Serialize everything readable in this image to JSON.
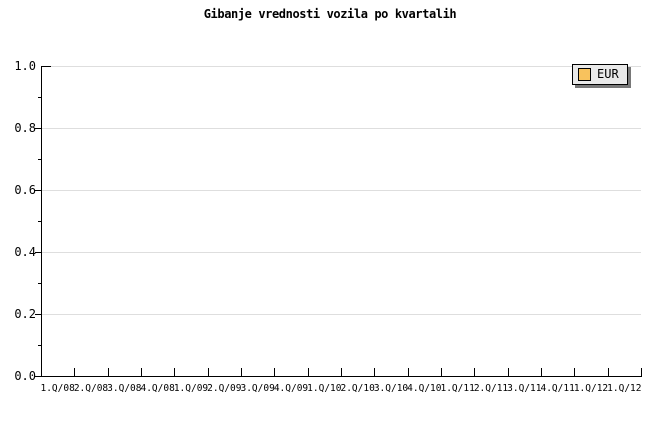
{
  "colors": {
    "background": "#FFFFFF",
    "axis": "#000000",
    "gridline": "#DEDEDE",
    "legend_bg": "#E9E9E9",
    "legend_border": "#000000",
    "legend_shadow": "#787878",
    "swatch": "#F8C25D",
    "text": "#000000"
  },
  "chart_data": {
    "type": "line",
    "title": "Gibanje vrednosti vozila po kvartalih",
    "xlabel": "",
    "ylabel": "",
    "categories": [
      "1.Q/08",
      "2.Q/08",
      "3.Q/08",
      "4.Q/08",
      "1.Q/09",
      "2.Q/09",
      "3.Q/09",
      "4.Q/09",
      "1.Q/10",
      "2.Q/10",
      "3.Q/10",
      "4.Q/10",
      "1.Q/11",
      "2.Q/11",
      "3.Q/11",
      "4.Q/11",
      "1.Q/12",
      "1.Q/12"
    ],
    "y_tick_labels": [
      "1.0",
      "0.8",
      "0.6",
      "0.4",
      "0.2",
      "0.0"
    ],
    "y_ticks": [
      1.0,
      0.8,
      0.6,
      0.4,
      0.2,
      0.0
    ],
    "y_minor_ticks": [
      0.9,
      0.7,
      0.5,
      0.3,
      0.1
    ],
    "ylim": [
      0.0,
      1.0
    ],
    "grid": "horizontal-major-only",
    "series": [
      {
        "name": "EUR",
        "values": []
      }
    ],
    "legend": {
      "position": "top-right",
      "entries": [
        {
          "label": "EUR",
          "swatch_color": "#F8C25D"
        }
      ]
    }
  }
}
